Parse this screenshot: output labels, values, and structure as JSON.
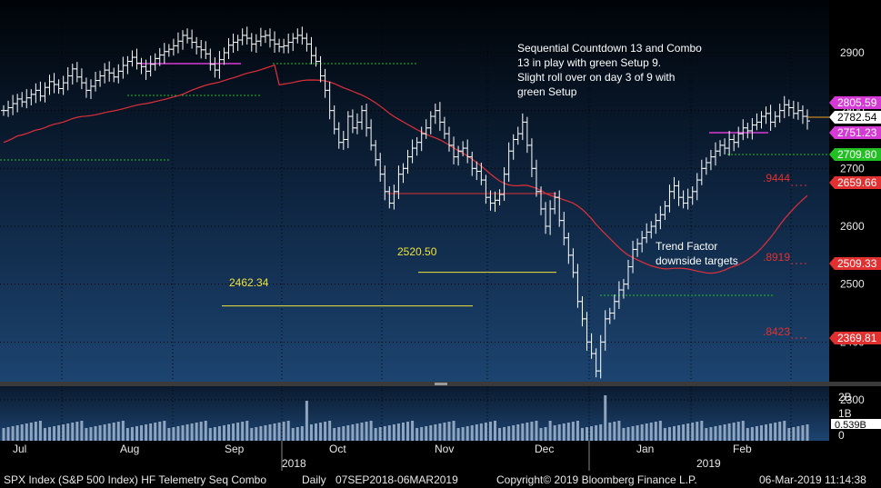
{
  "chart_data": {
    "type": "candlestick",
    "ticker": "SPX Index (S&P 500 Index) HF Telemetry Seq Combo",
    "frequency": "Daily",
    "date_range": "07SEP2018-06MAR2019",
    "copyright": "Copyright© 2019 Bloomberg Finance L.P.",
    "timestamp": "06-Mar-2019 11:14:38",
    "y_axis": {
      "ticks": [
        2300,
        2400,
        2500,
        2600,
        2700,
        2800,
        2900
      ],
      "ylim": [
        2280,
        2950
      ]
    },
    "x_axis": {
      "months": [
        "Jul",
        "Aug",
        "Sep",
        "Oct",
        "Nov",
        "Dec",
        "Jan",
        "Feb"
      ],
      "years": [
        "2018",
        "2019"
      ]
    },
    "annotation_text": {
      "note_line1": "Sequential Countdown 13 and Combo",
      "note_line2": "13 in play with green Setup 9.",
      "note_line3": "Slight roll over on day 3 of 9 with",
      "note_line4": "green Setup",
      "trend_line1": "Trend Factor",
      "trend_line2": "downside targets"
    },
    "levels": [
      {
        "label": "2520.50",
        "value": 2520.5
      },
      {
        "label": "2462.34",
        "value": 2462.34
      }
    ],
    "trend_factors": [
      {
        "label": ".9444",
        "value": 2659.66
      },
      {
        "label": ".8919",
        "value": 2509.33
      },
      {
        "label": ".8423",
        "value": 2369.81
      }
    ],
    "price_tags": [
      {
        "label": "2805.59",
        "value": 2805.59,
        "color": "#d63ad6"
      },
      {
        "label": "2782.54",
        "value": 2782.54,
        "color": "#ffffff"
      },
      {
        "label": "2751.23",
        "value": 2751.23,
        "color": "#d63ad6"
      },
      {
        "label": "2709.80",
        "value": 2709.8,
        "color": "#22c022"
      },
      {
        "label": "2659.66",
        "value": 2659.66,
        "color": "#e23030"
      },
      {
        "label": "2509.33",
        "value": 2509.33,
        "color": "#e23030"
      },
      {
        "label": "2369.81",
        "value": 2369.81,
        "color": "#e23030"
      }
    ],
    "moving_average_color": "#e0303a",
    "volume": {
      "ticks": [
        "2B",
        "1B",
        "0"
      ],
      "last_label": "0.539B"
    },
    "closes": [
      2800,
      2805,
      2812,
      2820,
      2815,
      2822,
      2828,
      2835,
      2825,
      2840,
      2850,
      2845,
      2838,
      2848,
      2860,
      2872,
      2858,
      2848,
      2835,
      2842,
      2852,
      2860,
      2870,
      2865,
      2858,
      2868,
      2878,
      2885,
      2892,
      2882,
      2876,
      2868,
      2880,
      2890,
      2896,
      2902,
      2906,
      2912,
      2920,
      2930,
      2925,
      2918,
      2910,
      2905,
      2898,
      2880,
      2870,
      2888,
      2900,
      2913,
      2918,
      2922,
      2930,
      2925,
      2915,
      2920,
      2928,
      2930,
      2922,
      2915,
      2910,
      2912,
      2918,
      2925,
      2930,
      2925,
      2915,
      2895,
      2885,
      2860,
      2835,
      2800,
      2768,
      2745,
      2750,
      2790,
      2770,
      2780,
      2800,
      2770,
      2740,
      2715,
      2690,
      2660,
      2640,
      2660,
      2690,
      2700,
      2720,
      2735,
      2745,
      2760,
      2770,
      2790,
      2800,
      2780,
      2760,
      2740,
      2720,
      2730,
      2735,
      2720,
      2700,
      2695,
      2680,
      2650,
      2640,
      2645,
      2655,
      2690,
      2730,
      2750,
      2760,
      2780,
      2740,
      2700,
      2660,
      2630,
      2600,
      2630,
      2650,
      2610,
      2580,
      2550,
      2520,
      2470,
      2440,
      2400,
      2380,
      2350,
      2400,
      2440,
      2450,
      2470,
      2490,
      2500,
      2530,
      2560,
      2570,
      2580,
      2590,
      2600,
      2610,
      2620,
      2635,
      2660,
      2670,
      2650,
      2640,
      2650,
      2660,
      2680,
      2700,
      2710,
      2720,
      2730,
      2740,
      2735,
      2750,
      2745,
      2760,
      2770,
      2765,
      2775,
      2780,
      2790,
      2795,
      2780,
      2790,
      2800,
      2810,
      2805,
      2795,
      2800,
      2790,
      2782
    ]
  }
}
